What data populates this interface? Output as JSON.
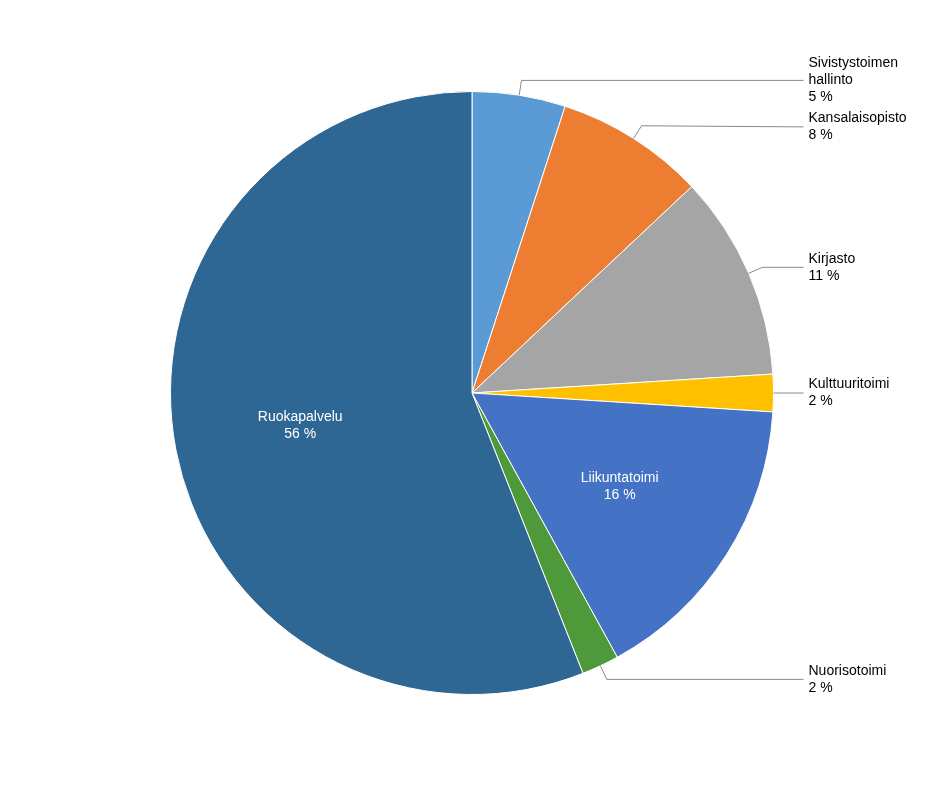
{
  "chart_data": {
    "type": "pie",
    "categories": [
      "Sivistystoimen\nhallinto",
      "Kansalaisopisto",
      "Kirjasto",
      "Kulttuuritoimi",
      "Liikuntatoimi",
      "Nuorisotoimi",
      "Ruokapalvelu"
    ],
    "values": [
      5,
      8,
      11,
      2,
      16,
      2,
      56
    ],
    "value_labels": [
      "5 %",
      "8 %",
      "11 %",
      "2 %",
      "16 %",
      "2 %",
      "56 %"
    ],
    "colors": [
      "#5b9bd5",
      "#ed7d31",
      "#a5a5a5",
      "#ffc000",
      "#4472c4",
      "#4e9a3a",
      "#2e6694"
    ],
    "data_labels": true
  }
}
